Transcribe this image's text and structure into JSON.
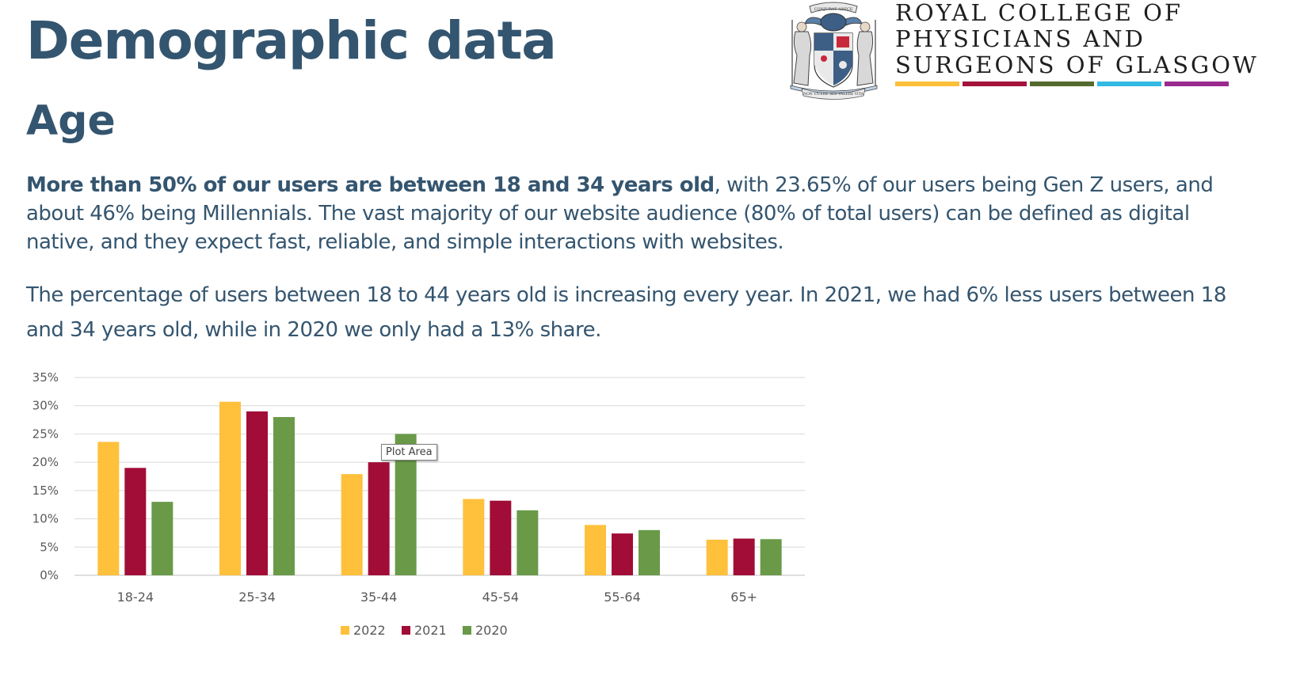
{
  "header": {
    "title": "Demographic data",
    "subtitle": "Age"
  },
  "logo": {
    "lines": [
      "ROYAL COLLEGE OF",
      "PHYSICIANS AND",
      "SURGEONS OF GLASGOW"
    ],
    "bar_colors": [
      "#fbbf3a",
      "#a3133a",
      "#546b2d",
      "#33b9e3",
      "#9b2a8f"
    ],
    "crest_motto_top": "CONJURAT AMICE",
    "crest_motto_bottom": "NON VIVERE SED VALERE VITA"
  },
  "body": {
    "para1_bold": "More than 50% of our users are between 18 and 34 years old",
    "para1_rest": ", with 23.65% of our users being Gen Z users, and about 46% being Millennials. The vast majority of our website audience (80% of total users) can be defined as digital native, and they expect fast, reliable, and simple interactions with websites.",
    "para2": "The percentage of users between 18 to 44 years old is increasing every year. In 2021, we had 6% less users between 18 and 34 years old, while in 2020 we only had a 13% share."
  },
  "tooltip": "Plot Area",
  "chart_data": {
    "type": "bar",
    "categories": [
      "18-24",
      "25-34",
      "35-44",
      "45-54",
      "55-64",
      "65+"
    ],
    "series": [
      {
        "name": "2022",
        "color": "#ffc03c",
        "values": [
          23.6,
          30.7,
          17.9,
          13.5,
          8.9,
          6.3
        ]
      },
      {
        "name": "2021",
        "color": "#a10d37",
        "values": [
          19.0,
          29.0,
          20.0,
          13.2,
          7.4,
          6.5
        ]
      },
      {
        "name": "2020",
        "color": "#6a9a48",
        "values": [
          13.0,
          28.0,
          25.0,
          11.5,
          8.0,
          6.4
        ]
      }
    ],
    "ylim": [
      0,
      35
    ],
    "yticks": [
      "0%",
      "5%",
      "10%",
      "15%",
      "20%",
      "25%",
      "30%",
      "35%"
    ],
    "grid": true,
    "legend_position": "bottom",
    "title": "",
    "xlabel": "",
    "ylabel": ""
  }
}
